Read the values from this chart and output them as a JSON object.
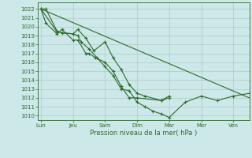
{
  "background_color": "#cde8e8",
  "grid_color": "#b0c8c8",
  "line_color": "#2d6a2d",
  "xlabel": "Pression niveau de la mer( hPa )",
  "ylim": [
    1009.5,
    1022.7
  ],
  "yticks": [
    1010,
    1011,
    1012,
    1013,
    1014,
    1015,
    1016,
    1017,
    1018,
    1019,
    1020,
    1021,
    1022
  ],
  "xtick_labels": [
    "Lun",
    "Jeu",
    "Sam",
    "Dim",
    "Mar",
    "Mer",
    "Ven"
  ],
  "xtick_positions": [
    0,
    1,
    2,
    3,
    4,
    5,
    6
  ],
  "xlim": [
    -0.1,
    6.5
  ],
  "trend_x": [
    0,
    6.5
  ],
  "trend_y": [
    1022.0,
    1012.0
  ],
  "line1_x": [
    0,
    0.15,
    0.5,
    0.65,
    1.0,
    1.15,
    1.4,
    1.65,
    2.0,
    2.25,
    2.5,
    2.75,
    3.0,
    3.25,
    3.75,
    4.0
  ],
  "line1": [
    1022.0,
    1022.0,
    1019.5,
    1019.3,
    1019.2,
    1019.7,
    1018.7,
    1017.3,
    1018.3,
    1016.5,
    1015.2,
    1013.5,
    1012.5,
    1012.2,
    1011.7,
    1012.2
  ],
  "line2_x": [
    0,
    0.15,
    0.5,
    0.65,
    1.0,
    1.15,
    1.4,
    1.5,
    1.7,
    2.0,
    2.25,
    2.5,
    2.75,
    3.0,
    3.75,
    4.0
  ],
  "line2": [
    1022.0,
    1020.4,
    1019.2,
    1019.7,
    1018.5,
    1018.5,
    1017.0,
    1017.0,
    1016.5,
    1016.0,
    1015.0,
    1013.3,
    1012.0,
    1012.0,
    1011.7,
    1012.0
  ],
  "line3_x": [
    0,
    0.5,
    1.0,
    1.15,
    1.25,
    1.5,
    1.75,
    2.0,
    2.25,
    2.5,
    2.75,
    3.0,
    3.25,
    3.5,
    3.75,
    4.0,
    4.5,
    5.0,
    5.5,
    6.0,
    6.5
  ],
  "line3": [
    1022.0,
    1019.4,
    1019.2,
    1019.0,
    1018.3,
    1017.5,
    1016.5,
    1015.5,
    1014.5,
    1013.0,
    1012.8,
    1011.5,
    1011.0,
    1010.5,
    1010.2,
    1009.8,
    1011.5,
    1012.2,
    1011.7,
    1012.2,
    1012.5
  ]
}
